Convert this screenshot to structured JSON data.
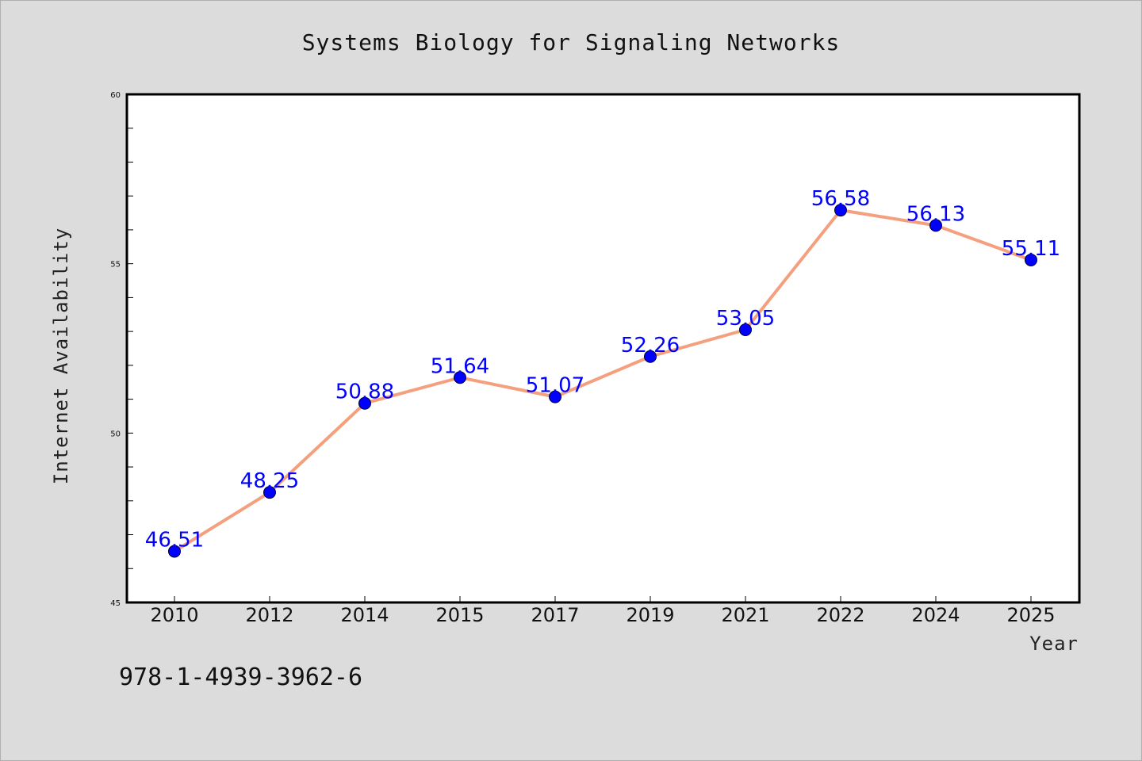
{
  "chart_data": {
    "type": "line",
    "title": "Systems Biology for Signaling Networks",
    "xlabel": "Year",
    "ylabel": "Internet Availability",
    "categories": [
      "2010",
      "2012",
      "2014",
      "2015",
      "2017",
      "2019",
      "2021",
      "2022",
      "2024",
      "2025"
    ],
    "series": [
      {
        "values": [
          46.51,
          48.25,
          50.88,
          51.64,
          51.07,
          52.26,
          53.05,
          56.58,
          56.13,
          55.11
        ],
        "data_labels": [
          "46.51",
          "48.25",
          "50.88",
          "51.64",
          "51.07",
          "52.26",
          "53.05",
          "56.58",
          "56.13",
          "55.11"
        ],
        "line_color": "#f4a07f",
        "marker_color": "#0000ff"
      }
    ],
    "ylim": [
      45,
      60
    ],
    "yticks": [
      "45",
      "50",
      "55",
      "60"
    ],
    "grid": false,
    "legend": "none"
  },
  "footer_text": "978-1-4939-3962-6"
}
